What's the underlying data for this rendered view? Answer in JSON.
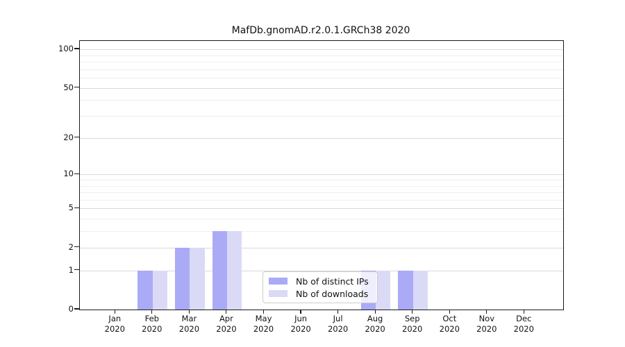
{
  "chart_data": {
    "type": "bar",
    "title": "MafDb.gnomAD.r2.0.1.GRCh38 2020",
    "categories": [
      "Jan",
      "Feb",
      "Mar",
      "Apr",
      "May",
      "Jun",
      "Jul",
      "Aug",
      "Sep",
      "Oct",
      "Nov",
      "Dec"
    ],
    "x_tick_year": "2020",
    "series": [
      {
        "name": "Nb of distinct IPs",
        "color": "#aaaaf7",
        "values": [
          0,
          1,
          2,
          3,
          0,
          0,
          0,
          1,
          1,
          0,
          0,
          0
        ]
      },
      {
        "name": "Nb of downloads",
        "color": "#dadaf7",
        "values": [
          0,
          1,
          2,
          3,
          0,
          0,
          0,
          1,
          1,
          0,
          0,
          0
        ]
      }
    ],
    "yscale": "log1p",
    "ylim": [
      0,
      117
    ],
    "y_major_ticks": [
      0,
      1,
      2,
      5,
      10,
      20,
      50,
      100
    ],
    "y_minor_ticks": [
      3,
      4,
      6,
      7,
      8,
      9,
      30,
      40,
      60,
      70,
      80,
      90
    ],
    "grid": "on",
    "legend_position": "inside lower center-right",
    "colors": {
      "grid_major": "#d9d9d9",
      "grid_minor": "#efefef",
      "spine": "#1a1a1a",
      "text": "#111111",
      "legend_border": "#cccccc",
      "legend_background": "rgba(255,255,255,0.8)",
      "background": "#ffffff"
    }
  }
}
